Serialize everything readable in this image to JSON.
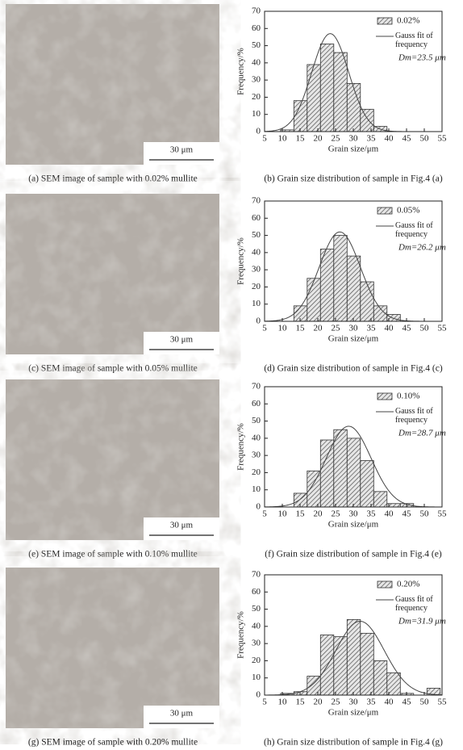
{
  "images": [
    {
      "scale_bar": "30 μm",
      "caption": "(a) SEM image of sample with 0.02% mullite"
    },
    {
      "scale_bar": "30 μm",
      "caption": "(c) SEM image of sample with 0.05% mullite"
    },
    {
      "scale_bar": "30 μm",
      "caption": "(e) SEM image of sample with 0.10% mullite"
    },
    {
      "scale_bar": "30 μm",
      "caption": "(g) SEM image of sample with 0.20% mullite"
    }
  ],
  "chart_data": [
    {
      "type": "histogram",
      "caption": "(b) Grain size distribution of sample in Fig.4 (a)",
      "x_label": "Grain size/μm",
      "y_label": "Frequency/%",
      "bins": [
        9.5,
        13.25,
        17,
        20.75,
        24.5,
        28.25,
        32,
        35.75,
        39.5
      ],
      "series": [
        {
          "name": "0.02%",
          "color": "#333333",
          "values": [
            1,
            18,
            39,
            51,
            46,
            28,
            13,
            3
          ]
        }
      ],
      "fit": {
        "name": "Gauss fit of frequency",
        "color": "#444444",
        "mean": 23.5,
        "sigma": 5.2,
        "peak": 57
      },
      "annotation": "Dm=23.5 μm",
      "xlim": [
        5,
        55
      ],
      "xticks": [
        5,
        10,
        15,
        20,
        25,
        30,
        35,
        40,
        45,
        50,
        55
      ],
      "ylim": [
        0,
        70
      ],
      "yticks": [
        0,
        10,
        20,
        30,
        40,
        50,
        60,
        70
      ]
    },
    {
      "type": "histogram",
      "caption": "(d) Grain size distribution of sample in Fig.4 (c)",
      "x_label": "Grain size/μm",
      "y_label": "Frequency/%",
      "bins": [
        13.25,
        17,
        20.75,
        24.5,
        28.25,
        32,
        35.75,
        39.5,
        43.25
      ],
      "series": [
        {
          "name": "0.05%",
          "color": "#333333",
          "values": [
            9,
            25,
            42,
            50,
            38,
            23,
            9,
            4
          ]
        }
      ],
      "fit": {
        "name": "Gauss fit of frequency",
        "color": "#444444",
        "mean": 26.2,
        "sigma": 5.8,
        "peak": 52
      },
      "annotation": "Dm=26.2 μm",
      "xlim": [
        5,
        55
      ],
      "xticks": [
        5,
        10,
        15,
        20,
        25,
        30,
        35,
        40,
        45,
        50,
        55
      ],
      "ylim": [
        0,
        70
      ],
      "yticks": [
        0,
        10,
        20,
        30,
        40,
        50,
        60,
        70
      ]
    },
    {
      "type": "histogram",
      "caption": "(f) Grain size distribution of sample in Fig.4 (e)",
      "x_label": "Grain size/μm",
      "y_label": "Frequency/%",
      "bins": [
        13.25,
        17,
        20.75,
        24.5,
        28.25,
        32,
        35.75,
        39.5,
        43.25,
        47
      ],
      "series": [
        {
          "name": "0.10%",
          "color": "#333333",
          "values": [
            8,
            21,
            39,
            45,
            40,
            27,
            9,
            2,
            2
          ]
        }
      ],
      "fit": {
        "name": "Gauss fit of frequency",
        "color": "#444444",
        "mean": 28.7,
        "sigma": 6.3,
        "peak": 47
      },
      "annotation": "Dm=28.7 μm",
      "xlim": [
        5,
        55
      ],
      "xticks": [
        5,
        10,
        15,
        20,
        25,
        30,
        35,
        40,
        45,
        50,
        55
      ],
      "ylim": [
        0,
        70
      ],
      "yticks": [
        0,
        10,
        20,
        30,
        40,
        50,
        60,
        70
      ]
    },
    {
      "type": "histogram",
      "caption": "(h) Grain size distribution of sample in Fig.4 (g)",
      "x_label": "Grain size/μm",
      "y_label": "Frequency/%",
      "bins": [
        9.5,
        13.25,
        17,
        20.75,
        24.5,
        28.25,
        32,
        35.75,
        39.5,
        43.25,
        47,
        50.75,
        54.5
      ],
      "series": [
        {
          "name": "0.20%",
          "color": "#333333",
          "values": [
            1,
            2,
            11,
            35,
            34,
            44,
            36,
            20,
            13,
            1,
            0,
            4
          ]
        }
      ],
      "fit": {
        "name": "Gauss fit of frequency",
        "color": "#444444",
        "mean": 31.9,
        "sigma": 6.8,
        "peak": 43
      },
      "annotation": "Dm=31.9 μm",
      "xlim": [
        5,
        55
      ],
      "xticks": [
        5,
        10,
        15,
        20,
        25,
        30,
        35,
        40,
        45,
        50,
        55
      ],
      "ylim": [
        0,
        70
      ],
      "yticks": [
        0,
        10,
        20,
        30,
        40,
        50,
        60,
        70
      ]
    }
  ]
}
